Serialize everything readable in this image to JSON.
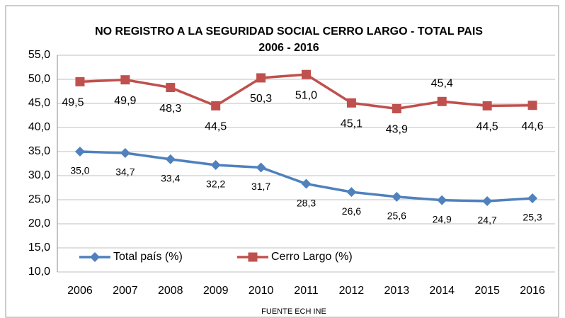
{
  "chart_data": {
    "type": "line",
    "title": "NO REGISTRO A LA SEGURIDAD SOCIAL CERRO LARGO - TOTAL PAIS",
    "subtitle": "2006 - 2016",
    "source": "FUENTE ECH INE",
    "categories": [
      "2006",
      "2007",
      "2008",
      "2009",
      "2010",
      "2011",
      "2012",
      "2013",
      "2014",
      "2015",
      "2016"
    ],
    "series": [
      {
        "name": "Total país (%)",
        "color": "#4f81bd",
        "marker": "diamond",
        "values": [
          35.0,
          34.7,
          33.4,
          32.2,
          31.7,
          28.3,
          26.6,
          25.6,
          24.9,
          24.7,
          25.3
        ],
        "value_labels": [
          "35,0",
          "34,7",
          "33,4",
          "32,2",
          "31,7",
          "28,3",
          "26,6",
          "25,6",
          "24,9",
          "24,7",
          "25,3"
        ]
      },
      {
        "name": "Cerro Largo (%)",
        "color": "#c0504d",
        "marker": "square",
        "values": [
          49.5,
          49.9,
          48.3,
          44.5,
          50.3,
          51.0,
          45.1,
          43.9,
          45.4,
          44.5,
          44.6
        ],
        "value_labels": [
          "49,5",
          "49,9",
          "48,3",
          "44,5",
          "50,3",
          "51,0",
          "45,1",
          "43,9",
          "45,4",
          "44,5",
          "44,6"
        ]
      }
    ],
    "ylim": [
      10,
      55
    ],
    "yticks": [
      {
        "value": 10,
        "label": "10,0"
      },
      {
        "value": 15,
        "label": "15,0"
      },
      {
        "value": 20,
        "label": "20,0"
      },
      {
        "value": 25,
        "label": "25,0"
      },
      {
        "value": 30,
        "label": "30,0"
      },
      {
        "value": 35,
        "label": "35,0"
      },
      {
        "value": 40,
        "label": "40,0"
      },
      {
        "value": 45,
        "label": "45,0"
      },
      {
        "value": 50,
        "label": "50,0"
      },
      {
        "value": 55,
        "label": "55,0"
      }
    ],
    "grid": true,
    "legend": "bottom-left"
  }
}
